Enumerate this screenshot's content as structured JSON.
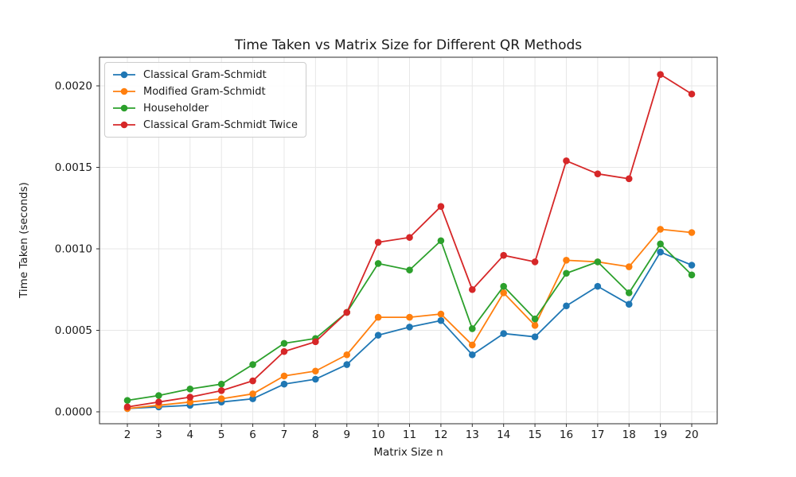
{
  "chart_data": {
    "type": "line",
    "title": "Time Taken vs Matrix Size for Different QR Methods",
    "xlabel": "Matrix Size n",
    "ylabel": "Time Taken (seconds)",
    "x": [
      2,
      3,
      4,
      5,
      6,
      7,
      8,
      9,
      10,
      11,
      12,
      13,
      14,
      15,
      16,
      17,
      18,
      19,
      20
    ],
    "series": [
      {
        "name": "Classical Gram-Schmidt",
        "color": "#1f77b4",
        "values": [
          2e-05,
          3e-05,
          4e-05,
          6e-05,
          8e-05,
          0.00017,
          0.0002,
          0.00029,
          0.00047,
          0.00052,
          0.00056,
          0.00035,
          0.00048,
          0.00046,
          0.00065,
          0.00077,
          0.00066,
          0.00098,
          0.0009
        ]
      },
      {
        "name": "Modified Gram-Schmidt",
        "color": "#ff7f0e",
        "values": [
          2e-05,
          4e-05,
          6e-05,
          8e-05,
          0.00011,
          0.00022,
          0.00025,
          0.00035,
          0.00058,
          0.00058,
          0.0006,
          0.00041,
          0.00073,
          0.00053,
          0.00093,
          0.00092,
          0.00089,
          0.00112,
          0.0011
        ]
      },
      {
        "name": "Householder",
        "color": "#2ca02c",
        "values": [
          7e-05,
          0.0001,
          0.00014,
          0.00017,
          0.00029,
          0.00042,
          0.00045,
          0.00061,
          0.00091,
          0.00087,
          0.00105,
          0.00051,
          0.00077,
          0.00057,
          0.00085,
          0.00092,
          0.00073,
          0.00103,
          0.00084
        ]
      },
      {
        "name": "Classical Gram-Schmidt Twice",
        "color": "#d62728",
        "values": [
          3e-05,
          6e-05,
          9e-05,
          0.00013,
          0.00019,
          0.00037,
          0.00043,
          0.00061,
          0.00104,
          0.00107,
          0.00126,
          0.00075,
          0.00096,
          0.00092,
          0.00154,
          0.00146,
          0.00143,
          0.00207,
          0.00195
        ]
      }
    ],
    "xticks": [
      2,
      3,
      4,
      5,
      6,
      7,
      8,
      9,
      10,
      11,
      12,
      13,
      14,
      15,
      16,
      17,
      18,
      19,
      20
    ],
    "yticks": [
      0.0,
      0.0005,
      0.001,
      0.0015,
      0.002
    ],
    "ytick_labels": [
      "0.0000",
      "0.0005",
      "0.0010",
      "0.0015",
      "0.0020"
    ],
    "axes": {
      "xlim": [
        1.111,
        20.812
      ],
      "ylim": [
        -7.32e-05,
        0.0021756
      ]
    },
    "grid": true,
    "legend_position": "upper left",
    "marker": "o",
    "styles": {
      "grid_color": "#e7e7e7",
      "spine_color": "#2b2b2b",
      "text_color": "#1a1a1a",
      "background": "#ffffff",
      "line_width": 1.8,
      "marker_radius": 4.3
    }
  }
}
